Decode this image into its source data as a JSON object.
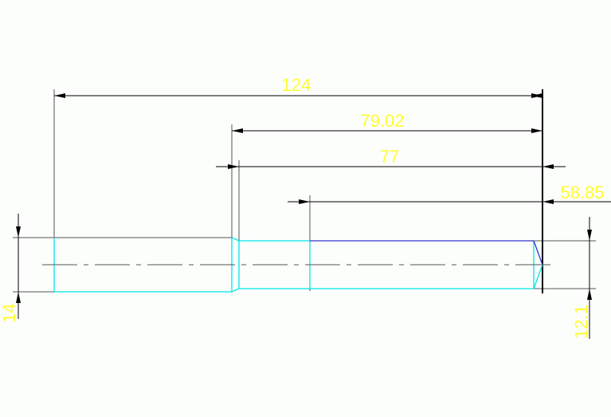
{
  "colors": {
    "background": "#fcfefc",
    "dimension_text": "#ffff33",
    "outline": "#00e5e5",
    "highlight_edge": "#3333cc",
    "dimension_line": "#000000"
  },
  "dimensions": {
    "overall_length": "124",
    "length_79": "79.02",
    "length_77": "77",
    "length_58": "58.85",
    "diameter_left": "14",
    "diameter_right": "12.1"
  }
}
